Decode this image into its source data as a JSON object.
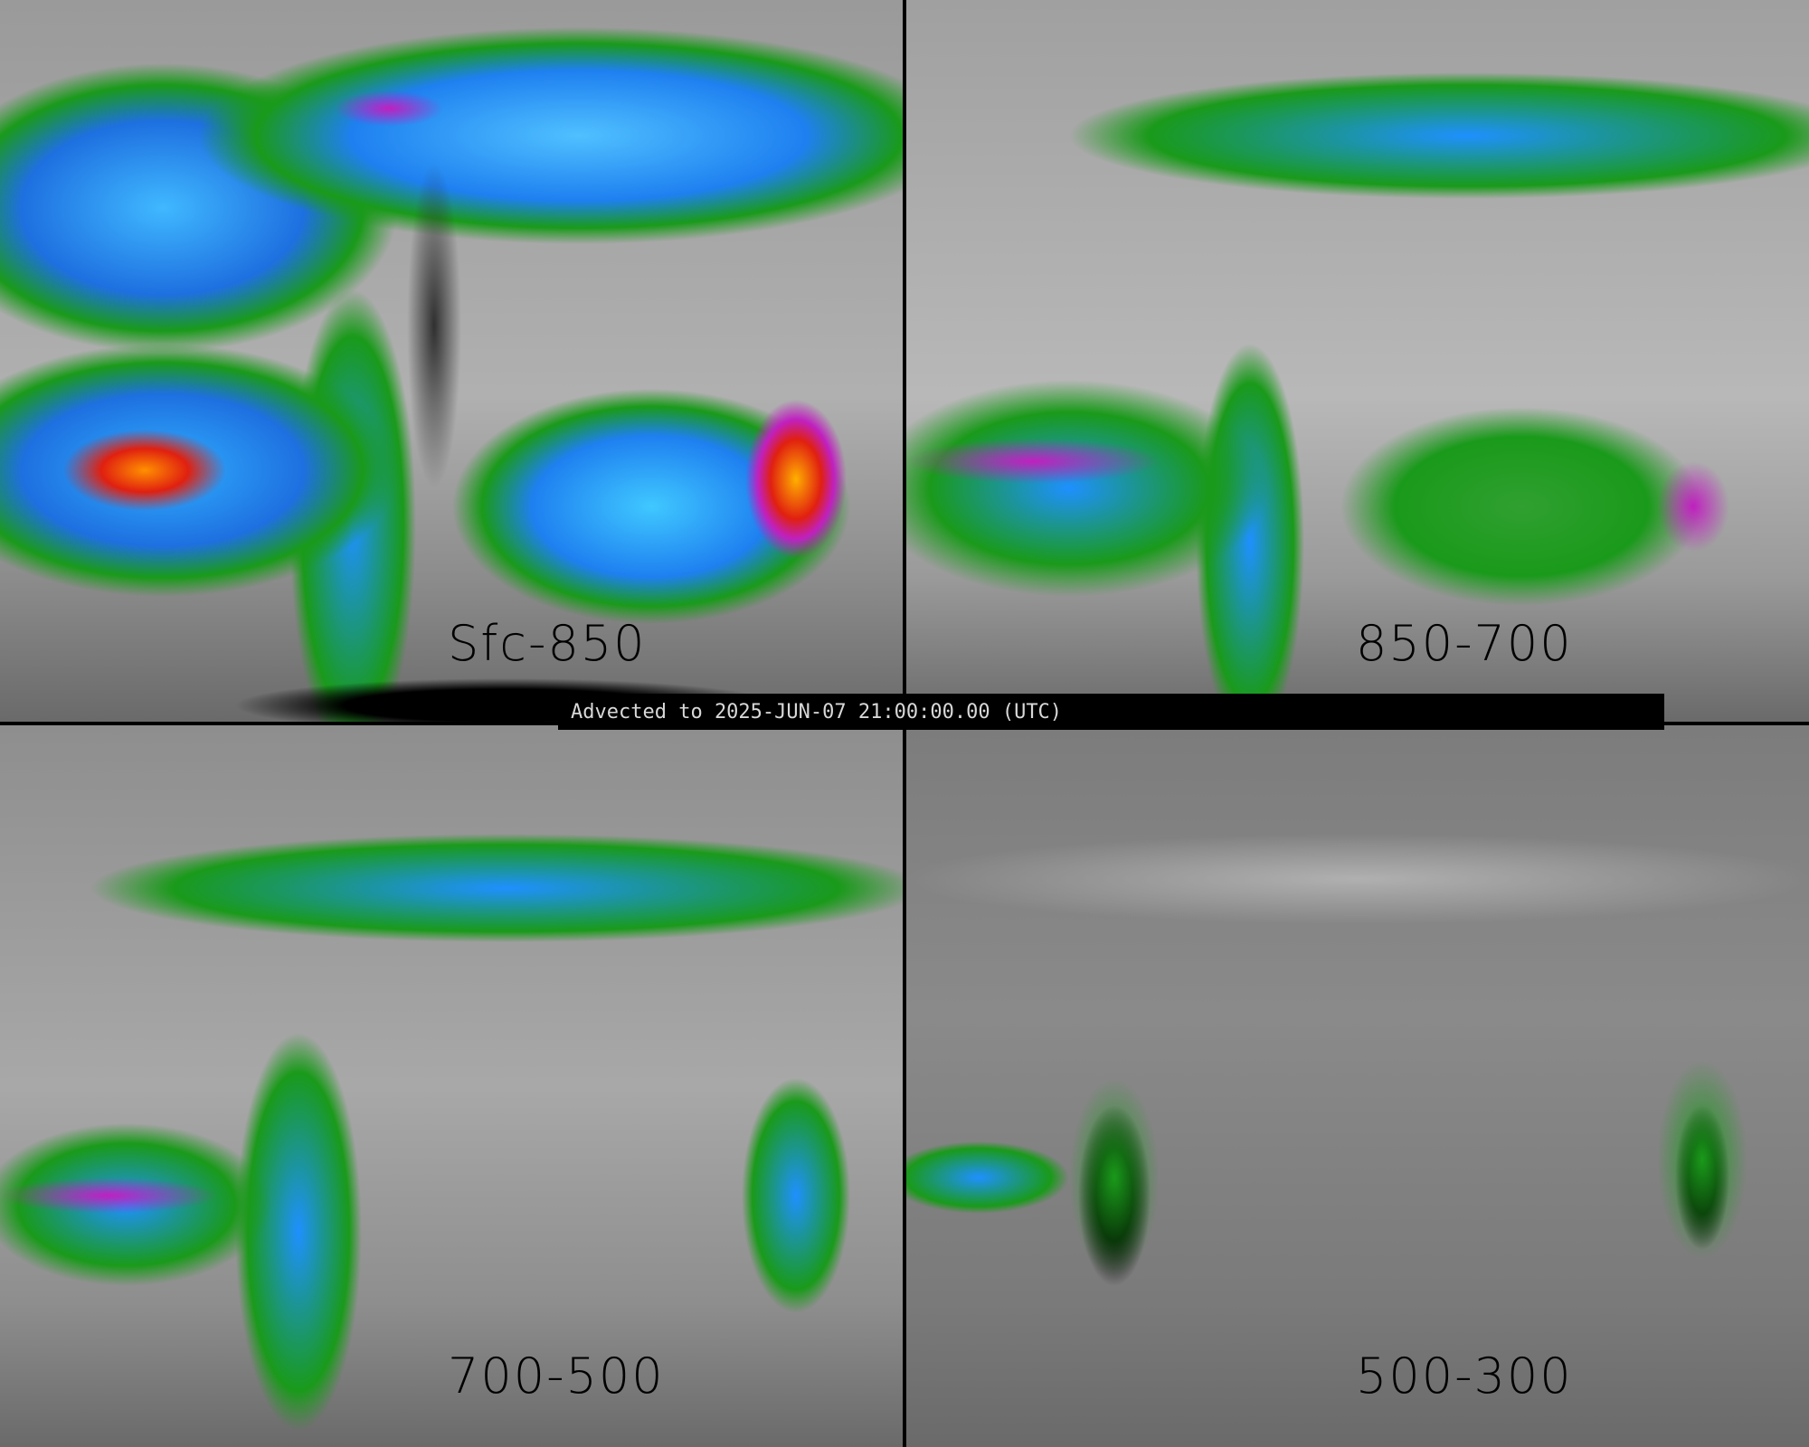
{
  "banner": {
    "text": "Advected to 2025-JUN-07 21:00:00.00 (UTC)"
  },
  "panels": [
    {
      "label": "Sfc-850"
    },
    {
      "label": "850-700"
    },
    {
      "label": "700-500"
    },
    {
      "label": "500-300"
    }
  ],
  "colors": {
    "low": "#808080",
    "green": "#1a9a1a",
    "blue": "#1e90ff",
    "cyan": "#40c8ff",
    "magenta": "#c020c0",
    "red": "#e02010",
    "orange": "#ff9000",
    "land_mask": "#000000"
  }
}
